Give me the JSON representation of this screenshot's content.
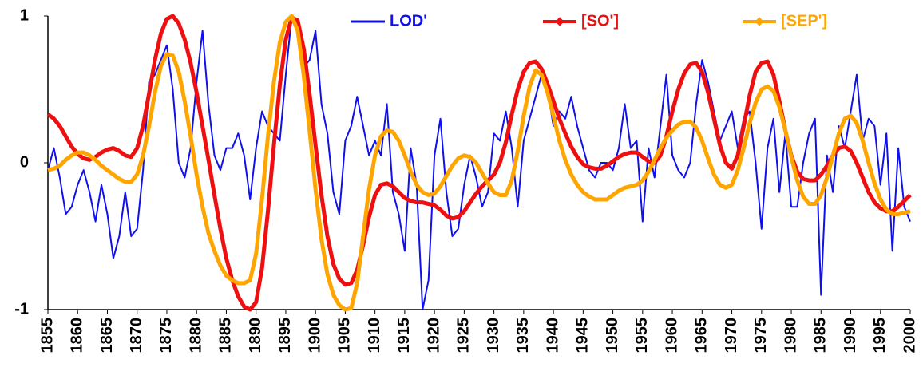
{
  "chart_data": {
    "type": "line",
    "x": [
      1855,
      1856,
      1857,
      1858,
      1859,
      1860,
      1861,
      1862,
      1863,
      1864,
      1865,
      1866,
      1867,
      1868,
      1869,
      1870,
      1871,
      1872,
      1873,
      1874,
      1875,
      1876,
      1877,
      1878,
      1879,
      1880,
      1881,
      1882,
      1883,
      1884,
      1885,
      1886,
      1887,
      1888,
      1889,
      1890,
      1891,
      1892,
      1893,
      1894,
      1895,
      1896,
      1897,
      1898,
      1899,
      1900,
      1901,
      1902,
      1903,
      1904,
      1905,
      1906,
      1907,
      1908,
      1909,
      1910,
      1911,
      1912,
      1913,
      1914,
      1915,
      1916,
      1917,
      1918,
      1919,
      1920,
      1921,
      1922,
      1923,
      1924,
      1925,
      1926,
      1927,
      1928,
      1929,
      1930,
      1931,
      1932,
      1933,
      1934,
      1935,
      1936,
      1937,
      1938,
      1939,
      1940,
      1941,
      1942,
      1943,
      1944,
      1945,
      1946,
      1947,
      1948,
      1949,
      1950,
      1951,
      1952,
      1953,
      1954,
      1955,
      1956,
      1957,
      1958,
      1959,
      1960,
      1961,
      1962,
      1963,
      1964,
      1965,
      1966,
      1967,
      1968,
      1969,
      1970,
      1971,
      1972,
      1973,
      1974,
      1975,
      1976,
      1977,
      1978,
      1979,
      1980,
      1981,
      1982,
      1983,
      1984,
      1985,
      1986,
      1987,
      1988,
      1989,
      1990,
      1991,
      1992,
      1993,
      1994,
      1995,
      1996,
      1997,
      1998,
      1999,
      2000
    ],
    "series": [
      {
        "name": "LOD'",
        "color": "#1010ee",
        "values": [
          -0.05,
          0.1,
          -0.1,
          -0.35,
          -0.3,
          -0.15,
          -0.05,
          -0.2,
          -0.4,
          -0.15,
          -0.35,
          -0.65,
          -0.5,
          -0.2,
          -0.5,
          -0.45,
          -0.05,
          0.55,
          0.6,
          0.7,
          0.8,
          0.5,
          0,
          -0.1,
          0.1,
          0.55,
          0.9,
          0.4,
          0.05,
          -0.05,
          0.1,
          0.1,
          0.2,
          0.05,
          -0.25,
          0.1,
          0.35,
          0.25,
          0.2,
          0.15,
          0.6,
          1.0,
          0.95,
          0.65,
          0.7,
          0.9,
          0.4,
          0.2,
          -0.2,
          -0.35,
          0.15,
          0.25,
          0.45,
          0.25,
          0.05,
          0.15,
          0.05,
          0.4,
          -0.2,
          -0.35,
          -0.6,
          0.1,
          -0.15,
          -1.0,
          -0.8,
          0.05,
          0.3,
          -0.2,
          -0.5,
          -0.45,
          -0.15,
          0.05,
          -0.1,
          -0.3,
          -0.2,
          0.2,
          0.15,
          0.35,
          0.1,
          -0.3,
          0.15,
          0.3,
          0.45,
          0.6,
          0.5,
          0.25,
          0.35,
          0.3,
          0.45,
          0.25,
          0.1,
          -0.05,
          -0.1,
          0,
          0,
          -0.05,
          0.1,
          0.4,
          0.1,
          0.15,
          -0.4,
          0.1,
          -0.1,
          0.25,
          0.6,
          0.05,
          -0.05,
          -0.1,
          0,
          0.4,
          0.7,
          0.55,
          0.35,
          0.15,
          0.25,
          0.35,
          0.1,
          0.3,
          0.35,
          0,
          -0.45,
          0.1,
          0.3,
          -0.2,
          0.2,
          -0.3,
          -0.3,
          0,
          0.2,
          0.3,
          -0.9,
          0.05,
          -0.2,
          0.25,
          0.1,
          0.35,
          0.6,
          0.15,
          0.3,
          0.25,
          -0.15,
          0.2,
          -0.6,
          0.1,
          -0.3,
          -0.4
        ]
      },
      {
        "name": "[SO']",
        "color": "#ee1010",
        "values": [
          0.33,
          0.3,
          0.25,
          0.18,
          0.11,
          0.06,
          0.03,
          0.02,
          0.04,
          0.07,
          0.09,
          0.1,
          0.08,
          0.05,
          0.04,
          0.1,
          0.25,
          0.47,
          0.7,
          0.88,
          0.98,
          1.0,
          0.95,
          0.84,
          0.68,
          0.48,
          0.25,
          0.02,
          -0.22,
          -0.45,
          -0.65,
          -0.8,
          -0.91,
          -0.98,
          -1.0,
          -0.95,
          -0.72,
          -0.33,
          0.12,
          0.53,
          0.84,
          0.99,
          0.97,
          0.78,
          0.47,
          0.12,
          -0.22,
          -0.5,
          -0.69,
          -0.79,
          -0.83,
          -0.82,
          -0.73,
          -0.56,
          -0.37,
          -0.22,
          -0.15,
          -0.14,
          -0.16,
          -0.2,
          -0.24,
          -0.26,
          -0.27,
          -0.27,
          -0.28,
          -0.29,
          -0.32,
          -0.36,
          -0.38,
          -0.37,
          -0.33,
          -0.27,
          -0.21,
          -0.16,
          -0.12,
          -0.08,
          0,
          0.14,
          0.33,
          0.5,
          0.62,
          0.68,
          0.69,
          0.64,
          0.54,
          0.42,
          0.3,
          0.2,
          0.11,
          0.04,
          -0.01,
          -0.03,
          -0.04,
          -0.04,
          -0.02,
          0.01,
          0.04,
          0.06,
          0.07,
          0.07,
          0.04,
          0.01,
          0,
          0.05,
          0.18,
          0.35,
          0.5,
          0.61,
          0.67,
          0.68,
          0.62,
          0.48,
          0.3,
          0.12,
          0,
          -0.04,
          0.05,
          0.25,
          0.46,
          0.62,
          0.68,
          0.69,
          0.6,
          0.42,
          0.22,
          0.05,
          -0.06,
          -0.11,
          -0.12,
          -0.12,
          -0.08,
          -0.02,
          0.05,
          0.1,
          0.11,
          0.08,
          0,
          -0.1,
          -0.2,
          -0.27,
          -0.31,
          -0.33,
          -0.33,
          -0.3,
          -0.26,
          -0.22
        ]
      },
      {
        "name": "[SEP']",
        "color": "#ffa500",
        "values": [
          -0.05,
          -0.04,
          -0.02,
          0.02,
          0.05,
          0.07,
          0.07,
          0.05,
          0.02,
          -0.02,
          -0.05,
          -0.08,
          -0.11,
          -0.13,
          -0.13,
          -0.08,
          0.05,
          0.25,
          0.48,
          0.66,
          0.74,
          0.73,
          0.62,
          0.42,
          0.18,
          -0.08,
          -0.3,
          -0.48,
          -0.6,
          -0.7,
          -0.77,
          -0.8,
          -0.82,
          -0.82,
          -0.8,
          -0.62,
          -0.25,
          0.18,
          0.55,
          0.82,
          0.96,
          1.0,
          0.9,
          0.6,
          0.22,
          -0.18,
          -0.52,
          -0.76,
          -0.9,
          -0.97,
          -1.0,
          -0.99,
          -0.82,
          -0.5,
          -0.18,
          0.05,
          0.18,
          0.22,
          0.21,
          0.15,
          0.05,
          -0.06,
          -0.15,
          -0.2,
          -0.22,
          -0.21,
          -0.16,
          -0.09,
          -0.02,
          0.03,
          0.05,
          0.04,
          0,
          -0.07,
          -0.14,
          -0.2,
          -0.22,
          -0.22,
          -0.12,
          0.08,
          0.32,
          0.52,
          0.63,
          0.6,
          0.48,
          0.32,
          0.15,
          0.02,
          -0.08,
          -0.15,
          -0.2,
          -0.23,
          -0.25,
          -0.25,
          -0.25,
          -0.22,
          -0.19,
          -0.17,
          -0.16,
          -0.15,
          -0.12,
          -0.06,
          0.02,
          0.1,
          0.17,
          0.22,
          0.26,
          0.28,
          0.28,
          0.24,
          0.15,
          0.03,
          -0.08,
          -0.15,
          -0.17,
          -0.15,
          -0.05,
          0.1,
          0.27,
          0.41,
          0.5,
          0.52,
          0.49,
          0.38,
          0.22,
          0.04,
          -0.12,
          -0.23,
          -0.28,
          -0.28,
          -0.22,
          -0.1,
          0.05,
          0.2,
          0.3,
          0.32,
          0.27,
          0.15,
          0,
          -0.14,
          -0.25,
          -0.32,
          -0.35,
          -0.35,
          -0.34,
          -0.33
        ]
      }
    ],
    "xlim": [
      1855,
      2000
    ],
    "xticks": [
      1855,
      1860,
      1865,
      1870,
      1875,
      1880,
      1885,
      1890,
      1895,
      1900,
      1905,
      1910,
      1915,
      1920,
      1925,
      1930,
      1935,
      1940,
      1945,
      1950,
      1955,
      1960,
      1965,
      1970,
      1975,
      1980,
      1985,
      1990,
      1995,
      2000
    ],
    "ylim": [
      -1,
      1
    ],
    "yticks": [
      -1,
      0,
      1
    ],
    "grid": false,
    "legend": "top"
  }
}
